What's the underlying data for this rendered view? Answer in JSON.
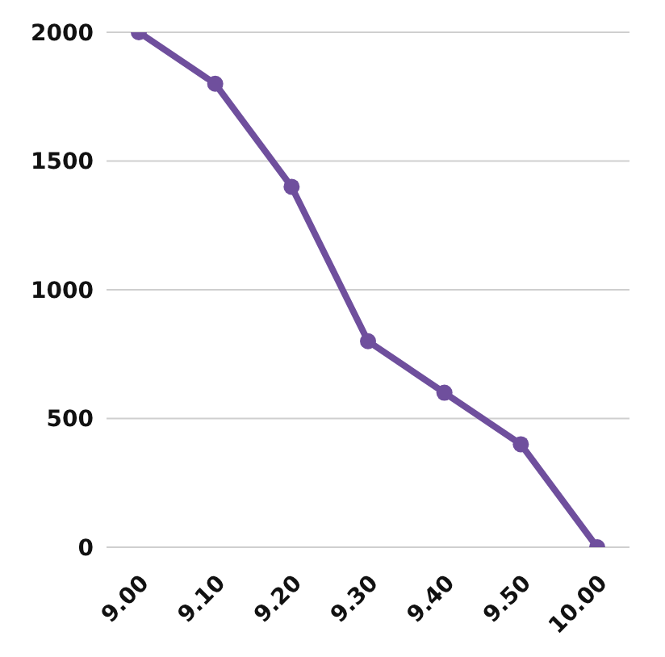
{
  "chart_data": {
    "type": "line",
    "categories": [
      "9.00",
      "9.10",
      "9.20",
      "9.30",
      "9.40",
      "9.50",
      "10.00"
    ],
    "series": [
      {
        "color": "#6f4f9d",
        "values": [
          2000,
          1800,
          1400,
          800,
          600,
          400,
          0
        ]
      }
    ],
    "ylim": [
      0,
      2000
    ],
    "yticks": [
      0,
      500,
      1000,
      1500,
      2000
    ],
    "grid": "y",
    "marker": "circle"
  }
}
